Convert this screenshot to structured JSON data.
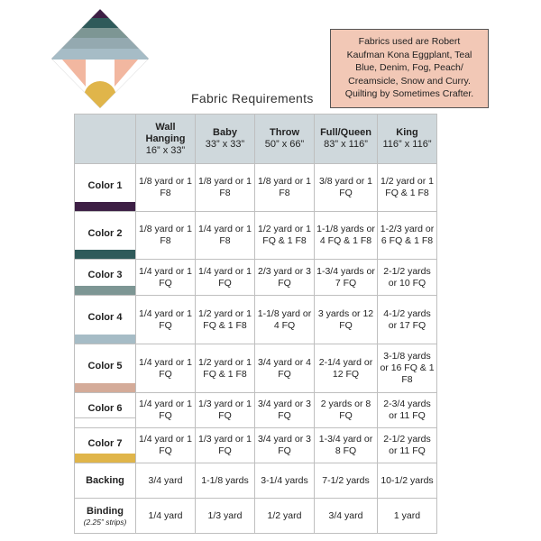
{
  "note": {
    "lines": [
      "Fabrics used are Robert",
      "Kaufman Kona Eggplant, Teal",
      "Blue, Denim, Fog, Peach/",
      "Creamsicle, Snow and Curry.",
      "Quilting by Sometimes Crafter."
    ]
  },
  "caption": "Fabric Requirements",
  "sizes": [
    {
      "name": "Wall Hanging",
      "dims": "16” x 33”"
    },
    {
      "name": "Baby",
      "dims": "33” x 33”"
    },
    {
      "name": "Throw",
      "dims": "50” x 66”"
    },
    {
      "name": "Full/Queen",
      "dims": "83” x 116”"
    },
    {
      "name": "King",
      "dims": "116” x 116”"
    }
  ],
  "rows": [
    {
      "label": "Color 1",
      "swatch": "#3d1f45",
      "cells": [
        "1/8 yard or 1 F8",
        "1/8 yard or 1 F8",
        "1/8 yard or 1 F8",
        "3/8 yard or 1 FQ",
        "1/2 yard or 1 FQ & 1 F8"
      ]
    },
    {
      "label": "Color 2",
      "swatch": "#2f5a5a",
      "cells": [
        "1/8 yard or 1 F8",
        "1/4 yard or 1 F8",
        "1/2 yard or 1 FQ & 1 F8",
        "1-1/8 yards or 4 FQ & 1 F8",
        "1-2/3 yard or 6 FQ & 1 F8"
      ]
    },
    {
      "label": "Color 3",
      "swatch": "#7d9694",
      "cells": [
        "1/4 yard or 1 FQ",
        "1/4 yard or 1 FQ",
        "2/3 yard or 3 FQ",
        "1-3/4 yards or 7 FQ",
        "2-1/2 yards or 10 FQ"
      ]
    },
    {
      "label": "Color 4",
      "swatch": "#a6bcc6",
      "cells": [
        "1/4 yard or 1 FQ",
        "1/2 yard or 1 FQ & 1 F8",
        "1-1/8 yard or 4 FQ",
        "3 yards or 12 FQ",
        "4-1/2 yards or 17 FQ"
      ]
    },
    {
      "label": "Color 5",
      "swatch": "#d4ab99",
      "cells": [
        "1/4 yard or 1 FQ",
        "1/2 yard or 1 FQ & 1 F8",
        "3/4 yard or 4 FQ",
        "2-1/4 yard or 12 FQ",
        "3-1/8 yards or 16 FQ & 1 F8"
      ]
    },
    {
      "label": "Color 6",
      "swatch": "#ffffff",
      "cells": [
        "1/4 yard or 1 FQ",
        "1/3 yard or 1 FQ",
        "3/4 yard or 3 FQ",
        "2 yards or 8 FQ",
        "2-3/4 yards or 11 FQ"
      ]
    },
    {
      "label": "Color 7",
      "swatch": "#e0b54a",
      "cells": [
        "1/4 yard or 1 FQ",
        "1/3 yard or 1 FQ",
        "3/4 yard or 3 FQ",
        "1-3/4 yard or 8 FQ",
        "2-1/2 yards or 11 FQ"
      ]
    },
    {
      "label": "Backing",
      "swatch": "",
      "cells": [
        "3/4 yard",
        "1-1/8 yards",
        "3-1/4 yards",
        "7-1/2 yards",
        "10-1/2 yards"
      ]
    },
    {
      "label": "Binding",
      "sublabel": "(2.25” strips)",
      "swatch": "",
      "cells": [
        "1/4 yard",
        "1/3 yard",
        "1/2 yard",
        "3/4 yard",
        "1 yard"
      ]
    }
  ],
  "colors": {
    "header_bg": "#cfd8dc",
    "note_bg": "#f2c8b6",
    "border": "#bfbfbf"
  }
}
